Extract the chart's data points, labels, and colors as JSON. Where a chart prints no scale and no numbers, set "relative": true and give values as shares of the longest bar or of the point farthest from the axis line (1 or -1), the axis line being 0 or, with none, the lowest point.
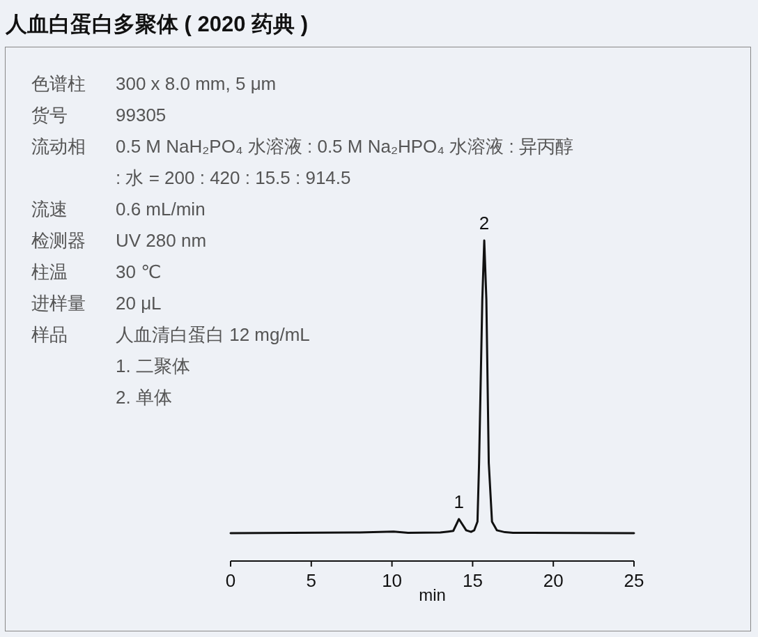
{
  "chart_data": {
    "type": "line",
    "title": "人血白蛋白多聚体 ( 2020 药典 )",
    "xlabel": "min",
    "relative": true,
    "tick_labels": "x",
    "xlim": [
      0,
      25
    ],
    "xticks": [
      0,
      5,
      10,
      15,
      20,
      25
    ],
    "x": [
      0,
      8,
      10.1,
      11,
      13,
      13.5,
      13.8,
      14.15,
      14.6,
      14.9,
      15.1,
      15.3,
      15.4,
      15.6,
      15.72,
      15.85,
      16.0,
      16.2,
      16.5,
      17,
      17.5,
      25
    ],
    "series": [
      {
        "color": "#111111",
        "values": [
          0.087,
          0.089,
          0.092,
          0.088,
          0.089,
          0.092,
          0.094,
          0.131,
          0.096,
          0.091,
          0.096,
          0.123,
          0.306,
          0.817,
          1,
          0.817,
          0.306,
          0.123,
          0.096,
          0.09,
          0.088,
          0.087
        ]
      }
    ],
    "annotations": [
      "色谱柱\t300 x 8.0 mm, 5 μm",
      "货号\t99305",
      "流动相\t0.5 M NaH₂PO₄ 水溶液 : 0.5 M Na₂HPO₄ 水溶液 : 异丙醇 : 水 = 200 : 420 : 15.5 : 914.5",
      "流速\t0.6 mL/min",
      "检测器\tUV 280 nm",
      "柱温\t30 ℃",
      "进样量\t20 μL",
      "样品\t人血清白蛋白 12 mg/mL",
      "\t1. 二聚体",
      "\t2. 单体",
      {
        "text": "1",
        "x": 14.15,
        "y": 0.131
      },
      {
        "text": "2",
        "x": 15.72,
        "y": 1
      }
    ]
  }
}
